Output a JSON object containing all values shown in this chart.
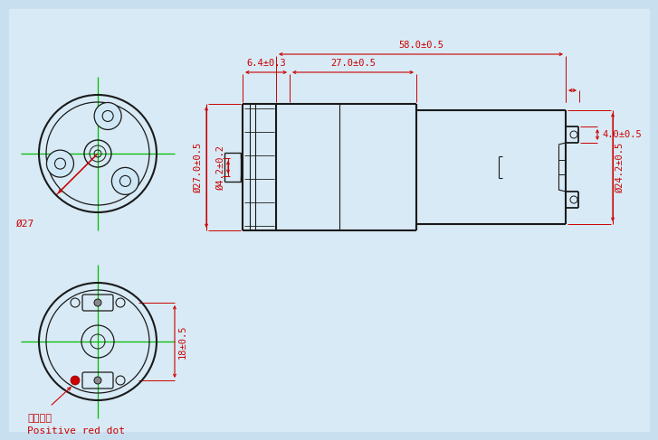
{
  "bg_color": "#c8dff0",
  "line_color": "#1a1a1a",
  "dim_color": "#cc0000",
  "green_color": "#00bb00",
  "dims": {
    "total_length": "58.0±0.5",
    "shaft_section": "6.4±0.3",
    "motor_section": "27.0±0.5",
    "motor_od": "Ø27.0±0.5",
    "shaft_od": "Ø4.2±0.2",
    "pump_od": "Ø24.2±0.5",
    "terminal_height": "4.0±0.5",
    "back_dim": "18±0.5",
    "front_od": "Ø27"
  },
  "annotation_cn": "红点正极",
  "annotation_en": "Positive red dot",
  "layout": {
    "fig_w": 7.27,
    "fig_h": 4.87,
    "dpi": 100
  }
}
